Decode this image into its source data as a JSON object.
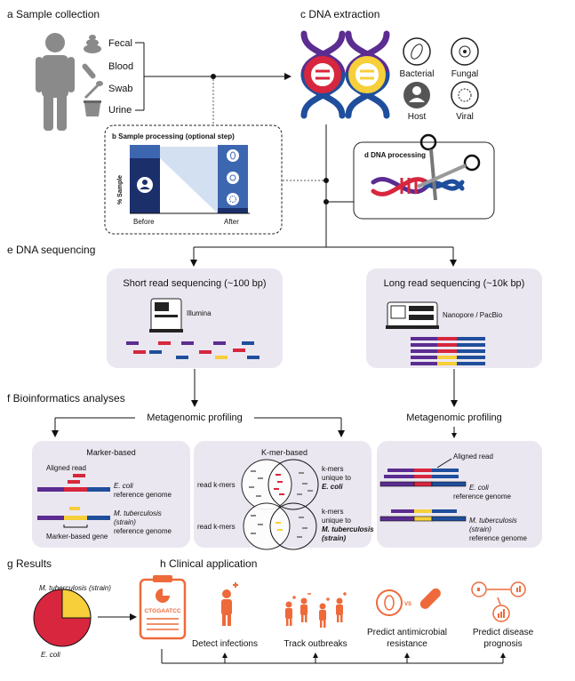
{
  "sections": {
    "a": {
      "title": "a Sample collection",
      "samples": [
        "Fecal",
        "Blood",
        "Swab",
        "Urine"
      ]
    },
    "b": {
      "title": "b Sample processing (optional step)",
      "ylabel": "% Sample",
      "before": "Before",
      "after": "After"
    },
    "c": {
      "title": "c DNA extraction",
      "sources": [
        "Bacterial",
        "Fungal",
        "Host",
        "Viral"
      ]
    },
    "d": {
      "title": "d DNA processing"
    },
    "e": {
      "title": "e DNA sequencing",
      "short": {
        "title": "Short read sequencing (~100 bp)",
        "platform": "Illumina"
      },
      "long": {
        "title": "Long read sequencing (~10k bp)",
        "platform": "Nanopore / PacBio"
      }
    },
    "f": {
      "title": "f Bioinformatics analyses",
      "profiling": "Metagenomic profiling",
      "marker": {
        "title": "Marker-based",
        "aligned_read": "Aligned read",
        "ecoli": "E. coli",
        "ref_genome": "reference genome",
        "mtb": "M. tuberculosis",
        "strain": "(strain)",
        "marker_gene": "Marker-based gene"
      },
      "kmer": {
        "title": "K-mer-based",
        "read_kmers": "read k-mers",
        "unique1": "k-mers",
        "unique2": "unique to",
        "ecoli": "E. coli",
        "mtb": "M. tuberculosis",
        "strain": "(strain)"
      },
      "long": {
        "aligned_read": "Aligned read",
        "ecoli": "E. coli",
        "ref_genome": "reference genome",
        "mtb": "M. tuberculosis",
        "strain": "(strain)"
      }
    },
    "g": {
      "title": "g Results",
      "pie_top": "M. tuberculosis (strain)",
      "pie_bottom": "E. coli"
    },
    "h": {
      "title": "h Clinical application",
      "sequence": "CTGGAATCC",
      "vs": "VS",
      "apps": [
        {
          "line1": "Detect infections",
          "line2": ""
        },
        {
          "line1": "Track outbreaks",
          "line2": ""
        },
        {
          "line1": "Predict antimicrobial",
          "line2": "resistance"
        },
        {
          "line1": "Predict disease",
          "line2": "prognosis"
        }
      ]
    }
  },
  "colors": {
    "purple": "#5b2c91",
    "red": "#d7263d",
    "blue": "#1f4e9c",
    "yellow": "#f6cf3a",
    "orange": "#ee6a3a",
    "panel": "#ebe7f1",
    "navy": "#1b2f6b"
  }
}
